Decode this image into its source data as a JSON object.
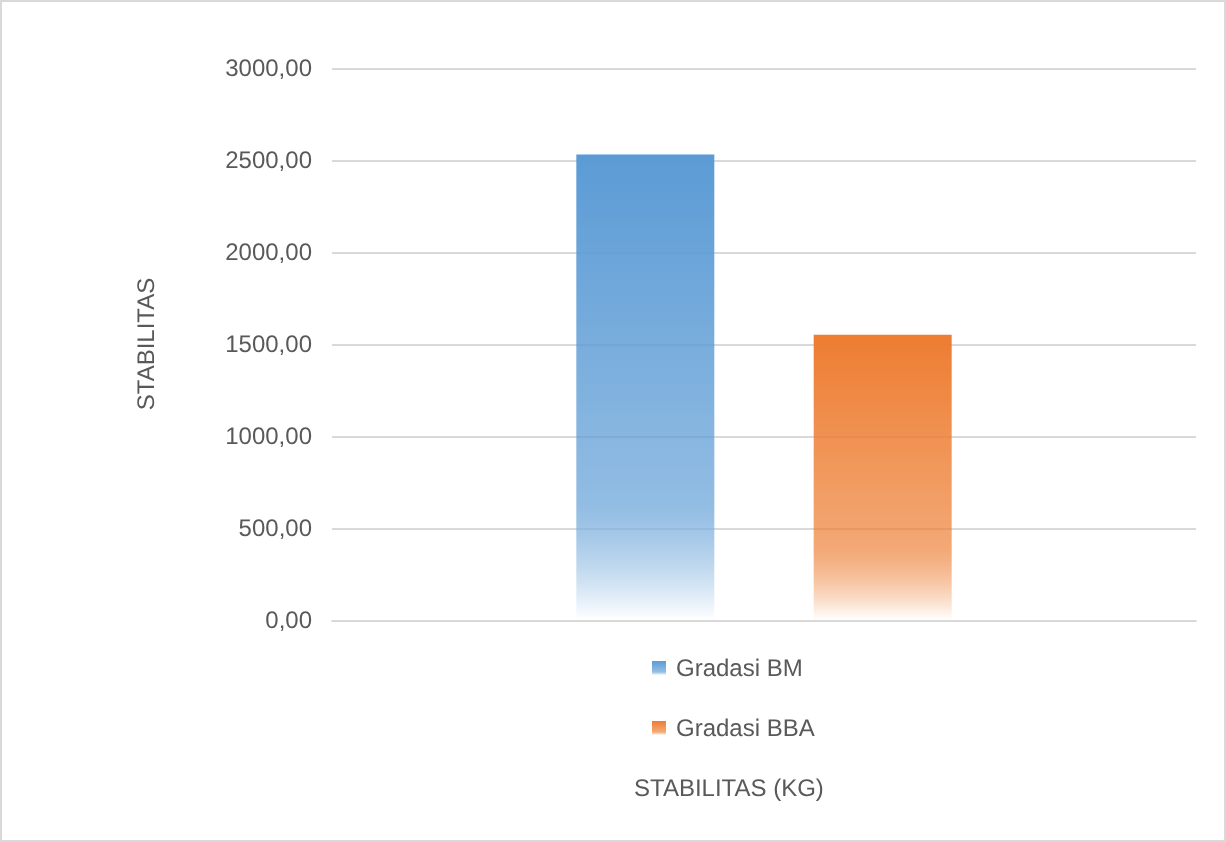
{
  "chart_data": {
    "type": "bar",
    "annotations": [
      "STABILITAS (KG)"
    ],
    "ylabel": "STABILITAS",
    "categories": [
      null
    ],
    "series": [
      {
        "name": "Gradasi BM",
        "color": "#5b9bd5",
        "values": [
          2530
        ]
      },
      {
        "name": "Gradasi BBA",
        "color": "#ed7d31",
        "values": [
          1550
        ]
      }
    ],
    "ylim": [
      0,
      3000
    ],
    "yticks": [
      {
        "value": 0,
        "label": "0,00"
      },
      {
        "value": 500,
        "label": "500,00"
      },
      {
        "value": 1000,
        "label": "1000,00"
      },
      {
        "value": 1500,
        "label": "1500,00"
      },
      {
        "value": 2000,
        "label": "2000,00"
      },
      {
        "value": 2500,
        "label": "2500,00"
      },
      {
        "value": 3000,
        "label": "3000,00"
      }
    ],
    "grid": "y",
    "legend": "bottom"
  }
}
